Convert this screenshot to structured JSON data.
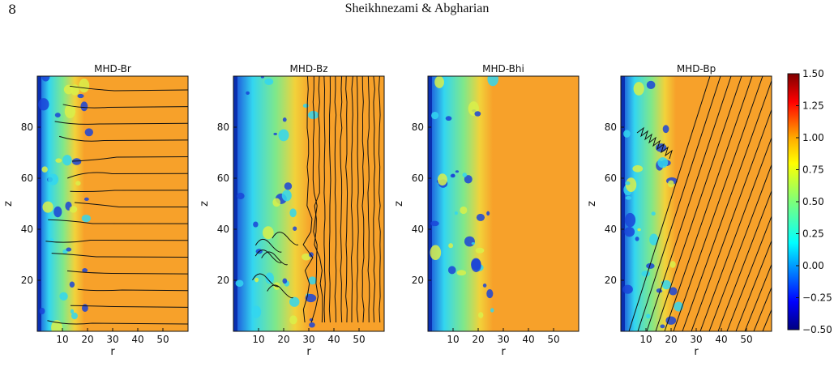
{
  "page": {
    "number": "8",
    "running_head": "Sheikhnezami & Abgharian"
  },
  "figure": {
    "panels": [
      {
        "title": "MHD-Br",
        "field_lines": "horizontal"
      },
      {
        "title": "MHD-Bz",
        "field_lines": "vertical"
      },
      {
        "title": "MHD-Bhi",
        "field_lines": "none"
      },
      {
        "title": "MHD-Bp",
        "field_lines": "diagonal"
      }
    ],
    "xlabel": "r",
    "ylabel": "z",
    "x_ticks": [
      "10",
      "20",
      "30",
      "40",
      "50"
    ],
    "y_ticks": [
      "20",
      "40",
      "60",
      "80"
    ],
    "colorbar": {
      "colormap": "jet",
      "min": -0.5,
      "max": 1.5,
      "ticks": [
        "1.50",
        "1.25",
        "1.00",
        "0.75",
        "0.50",
        "0.25",
        "0.00",
        "−0.25",
        "−0.50"
      ]
    },
    "colors": {
      "background_field": "#f7a12a",
      "turbulent_low": "#1a44d8",
      "turbulent_mid": "#33d6f0",
      "field_line": "#111111"
    }
  }
}
